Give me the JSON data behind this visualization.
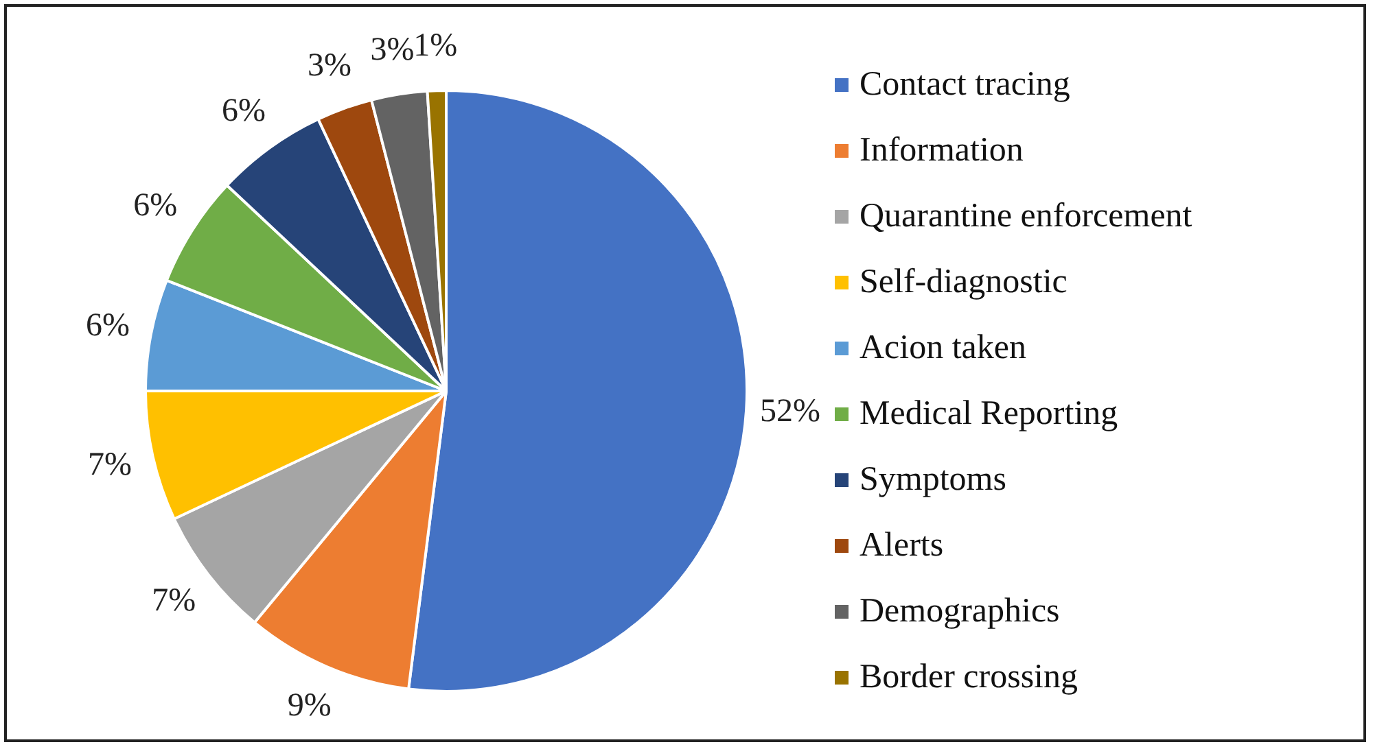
{
  "chart_data": {
    "type": "pie",
    "categories": [
      "Contact tracing",
      "Information",
      "Quarantine enforcement",
      "Self-diagnostic",
      "Acion taken",
      "Medical Reporting",
      "Symptoms",
      "Alerts",
      "Demographics",
      "Border crossing"
    ],
    "values": [
      52,
      9,
      7,
      7,
      6,
      6,
      6,
      3,
      3,
      1
    ],
    "colors": [
      "#4472c4",
      "#ed7d31",
      "#a5a5a5",
      "#ffc000",
      "#5b9bd5",
      "#70ad47",
      "#264478",
      "#9e480e",
      "#636363",
      "#997300"
    ],
    "value_labels": [
      "52%",
      "9%",
      "7%",
      "7%",
      "6%",
      "6%",
      "6%",
      "3%",
      "3%",
      "1%"
    ],
    "legend": "right"
  }
}
